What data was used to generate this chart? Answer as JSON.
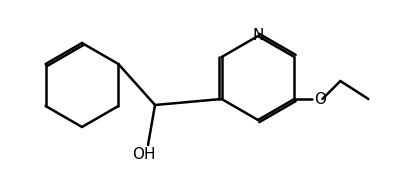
{
  "background_color": "#ffffff",
  "line_color": "#000000",
  "line_width": 1.8,
  "fig_width": 3.94,
  "fig_height": 1.76,
  "atoms": {
    "N": {
      "label": "N",
      "fontsize": 11
    },
    "O_ring": {
      "label": "O",
      "fontsize": 11
    },
    "OH": {
      "label": "OH",
      "fontsize": 11
    }
  }
}
